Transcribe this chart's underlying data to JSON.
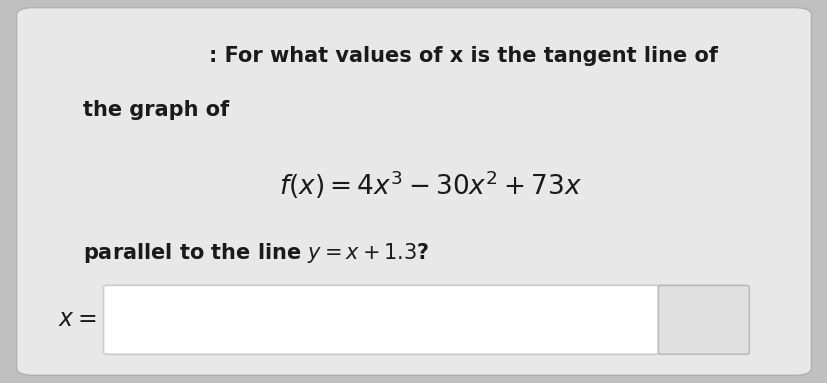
{
  "bg_outer": "#c0c0c0",
  "bg_card": "#e8e8e8",
  "text_color": "#1a1a1a",
  "line1": ": For what values of x is the tangent line of",
  "line2": "the graph of",
  "formula": "$f(x) = 4x^3 - 30x^2 + 73x$",
  "line3": "parallel to the line $y = x + 1.3$?",
  "label_x": "$x =$",
  "input_box_color": "#ffffff",
  "input_box_border": "#cccccc",
  "grid_btn_color": "#e0e0e0",
  "grid_btn_border": "#bbbbbb",
  "grid_dot_color": "#333333",
  "font_size_main": 15,
  "font_size_formula": 19,
  "font_size_label": 17
}
